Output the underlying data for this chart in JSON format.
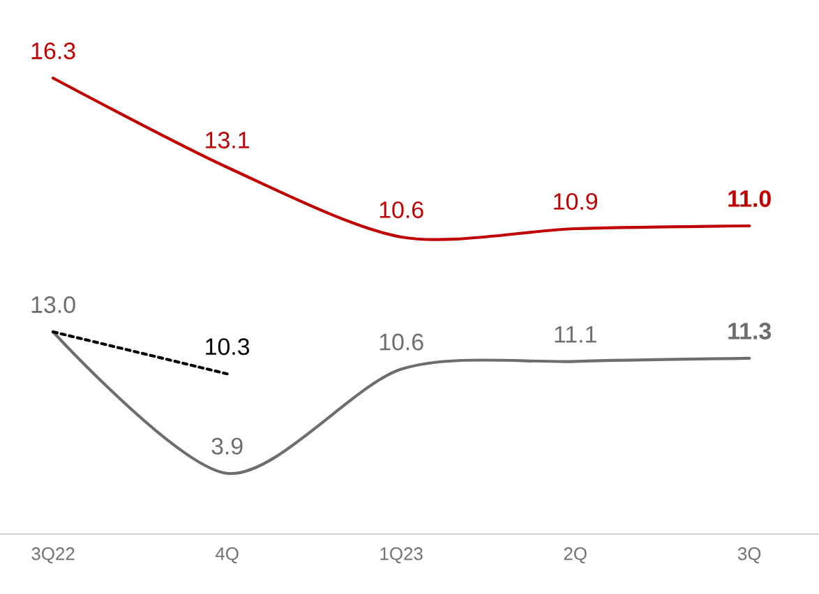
{
  "chart_data": [
    {
      "type": "line",
      "categories": [
        null,
        null,
        null,
        null,
        null
      ],
      "tick_labels": false,
      "series": [
        {
          "color": "#c00000",
          "values": [
            16.3,
            13.1,
            10.6,
            10.9,
            11.0
          ],
          "value_labels": [
            "16.3",
            "13.1",
            "10.6",
            "10.9",
            "**11.0**"
          ]
        }
      ]
    },
    {
      "type": "line",
      "categories": [
        "3Q22",
        "4Q",
        "1Q23",
        "2Q",
        "3Q"
      ],
      "tick_labels": "x",
      "series": [
        {
          "color": "#6d6d6d",
          "values": [
            13.0,
            3.9,
            10.6,
            11.1,
            11.3
          ],
          "value_labels": [
            "13.0",
            "3.9",
            "10.6",
            "11.1",
            "**11.3**"
          ]
        },
        {
          "color": "#000000",
          "line_style": "dashed",
          "values": [
            13.0,
            10.3,
            null,
            null,
            null
          ],
          "value_labels": [
            null,
            "10.3",
            null,
            null,
            null
          ]
        }
      ]
    }
  ]
}
